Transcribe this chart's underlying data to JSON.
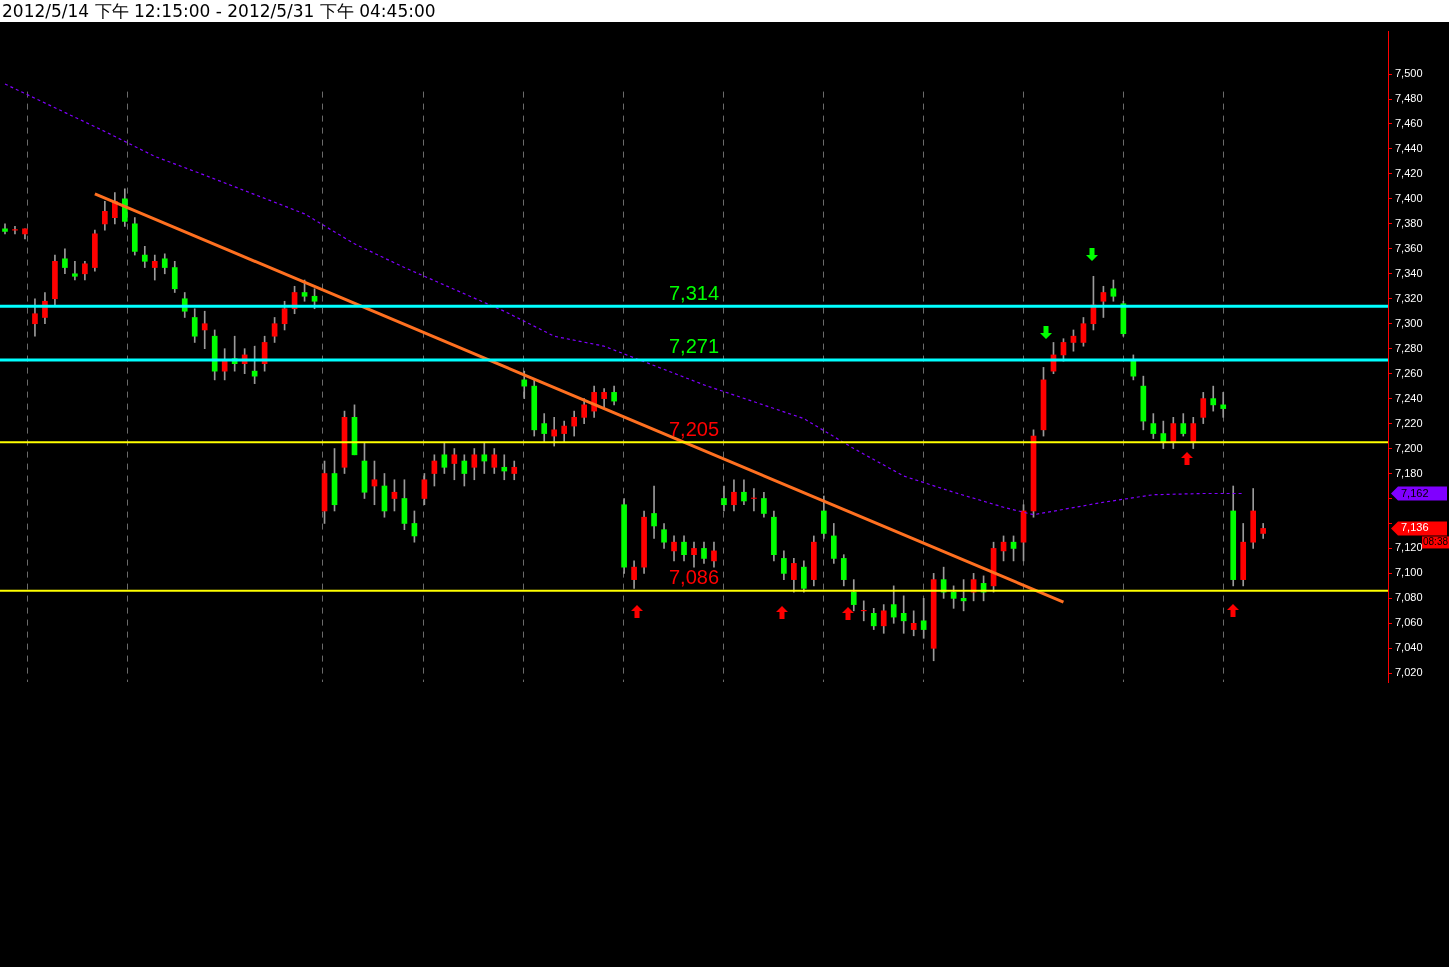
{
  "chart_data": {
    "type": "candlestick",
    "title": "2012/5/14 下午 12:15:00 - 2012/5/31 下午 04:45:00",
    "categories": [
      null,
      null,
      null,
      null,
      null,
      null,
      null,
      null,
      null,
      null,
      null,
      null,
      null,
      null,
      null,
      null,
      null,
      null,
      null,
      null,
      null,
      null,
      null,
      null,
      null,
      null,
      null,
      null,
      null,
      null,
      null,
      null,
      null,
      null,
      null,
      null,
      null,
      null,
      null,
      null,
      null,
      null,
      null,
      null,
      null,
      null,
      null,
      null,
      null,
      null,
      null,
      null,
      null,
      null,
      null,
      null,
      null,
      null,
      null,
      null,
      null,
      null,
      null,
      null,
      null,
      null,
      null,
      null,
      null,
      null,
      null,
      null,
      null,
      null,
      null,
      null,
      null,
      null,
      null,
      null,
      null,
      null,
      null,
      null,
      null,
      null,
      null,
      null,
      null,
      null,
      null,
      null,
      null,
      null,
      null,
      null,
      null,
      null,
      null,
      null,
      null,
      null,
      null,
      null,
      null,
      null,
      null,
      null,
      null,
      null,
      null,
      null,
      null,
      null,
      null,
      null,
      null,
      null,
      null,
      null,
      null,
      null,
      null,
      null,
      null,
      null,
      null,
      null,
      null,
      null,
      null,
      null,
      null,
      null,
      null,
      null,
      null,
      null,
      null
    ],
    "ohlc": [
      [
        7376,
        7380,
        7372,
        7374
      ],
      [
        7375,
        7378,
        7372,
        7375
      ],
      [
        7372,
        7376,
        7368,
        7376
      ],
      [
        7300,
        7320,
        7290,
        7308
      ],
      [
        7305,
        7325,
        7300,
        7318
      ],
      [
        7320,
        7355,
        7315,
        7350
      ],
      [
        7352,
        7360,
        7340,
        7345
      ],
      [
        7340,
        7350,
        7335,
        7338
      ],
      [
        7340,
        7350,
        7335,
        7348
      ],
      [
        7345,
        7375,
        7342,
        7372
      ],
      [
        7380,
        7398,
        7375,
        7390
      ],
      [
        7385,
        7405,
        7380,
        7398
      ],
      [
        7400,
        7408,
        7378,
        7382
      ],
      [
        7380,
        7385,
        7355,
        7358
      ],
      [
        7355,
        7362,
        7345,
        7350
      ],
      [
        7345,
        7355,
        7335,
        7350
      ],
      [
        7352,
        7356,
        7340,
        7345
      ],
      [
        7345,
        7350,
        7325,
        7328
      ],
      [
        7320,
        7325,
        7305,
        7310
      ],
      [
        7305,
        7312,
        7285,
        7290
      ],
      [
        7295,
        7310,
        7280,
        7300
      ],
      [
        7290,
        7295,
        7255,
        7262
      ],
      [
        7262,
        7280,
        7255,
        7270
      ],
      [
        7272,
        7290,
        7262,
        7268
      ],
      [
        7268,
        7280,
        7260,
        7275
      ],
      [
        7262,
        7282,
        7252,
        7258
      ],
      [
        7268,
        7290,
        7262,
        7285
      ],
      [
        7290,
        7305,
        7285,
        7300
      ],
      [
        7300,
        7318,
        7295,
        7312
      ],
      [
        7312,
        7330,
        7308,
        7325
      ],
      [
        7325,
        7335,
        7318,
        7322
      ],
      [
        7322,
        7328,
        7312,
        7318
      ],
      [
        7150,
        7190,
        7140,
        7180
      ],
      [
        7180,
        7200,
        7150,
        7155
      ],
      [
        7185,
        7230,
        7180,
        7225
      ],
      [
        7225,
        7235,
        7195,
        7195
      ],
      [
        7190,
        7205,
        7160,
        7165
      ],
      [
        7170,
        7190,
        7155,
        7175
      ],
      [
        7170,
        7180,
        7145,
        7150
      ],
      [
        7160,
        7175,
        7150,
        7165
      ],
      [
        7160,
        7175,
        7135,
        7140
      ],
      [
        7140,
        7150,
        7125,
        7130
      ],
      [
        7160,
        7180,
        7155,
        7175
      ],
      [
        7180,
        7195,
        7170,
        7190
      ],
      [
        7195,
        7205,
        7180,
        7185
      ],
      [
        7188,
        7200,
        7175,
        7195
      ],
      [
        7190,
        7195,
        7170,
        7180
      ],
      [
        7185,
        7200,
        7175,
        7195
      ],
      [
        7195,
        7205,
        7180,
        7190
      ],
      [
        7185,
        7200,
        7180,
        7195
      ],
      [
        7185,
        7195,
        7175,
        7182
      ],
      [
        7180,
        7190,
        7175,
        7185
      ],
      [
        7255,
        7262,
        7240,
        7250
      ],
      [
        7250,
        7255,
        7210,
        7215
      ],
      [
        7220,
        7228,
        7205,
        7212
      ],
      [
        7210,
        7225,
        7202,
        7215
      ],
      [
        7212,
        7222,
        7205,
        7218
      ],
      [
        7218,
        7230,
        7210,
        7225
      ],
      [
        7225,
        7240,
        7220,
        7235
      ],
      [
        7230,
        7250,
        7225,
        7245
      ],
      [
        7240,
        7248,
        7232,
        7245
      ],
      [
        7245,
        7250,
        7235,
        7238
      ],
      [
        7155,
        7160,
        7100,
        7105
      ],
      [
        7095,
        7110,
        7088,
        7105
      ],
      [
        7105,
        7150,
        7100,
        7145
      ],
      [
        7148,
        7170,
        7128,
        7138
      ],
      [
        7135,
        7140,
        7120,
        7125
      ],
      [
        7118,
        7130,
        7110,
        7125
      ],
      [
        7125,
        7130,
        7110,
        7115
      ],
      [
        7115,
        7125,
        7105,
        7120
      ],
      [
        7120,
        7125,
        7108,
        7112
      ],
      [
        7110,
        7125,
        7105,
        7118
      ],
      [
        7160,
        7170,
        7150,
        7155
      ],
      [
        7155,
        7175,
        7150,
        7165
      ],
      [
        7165,
        7175,
        7155,
        7158
      ],
      [
        7160,
        7168,
        7150,
        7160
      ],
      [
        7160,
        7165,
        7145,
        7148
      ],
      [
        7145,
        7150,
        7110,
        7115
      ],
      [
        7112,
        7118,
        7095,
        7100
      ],
      [
        7095,
        7112,
        7085,
        7108
      ],
      [
        7105,
        7110,
        7085,
        7088
      ],
      [
        7095,
        7130,
        7090,
        7125
      ],
      [
        7150,
        7162,
        7128,
        7132
      ],
      [
        7130,
        7140,
        7108,
        7112
      ],
      [
        7112,
        7115,
        7090,
        7095
      ],
      [
        7085,
        7095,
        7070,
        7075
      ],
      [
        7070,
        7078,
        7062,
        7070
      ],
      [
        7068,
        7072,
        7055,
        7058
      ],
      [
        7058,
        7075,
        7052,
        7070
      ],
      [
        7075,
        7090,
        7060,
        7065
      ],
      [
        7068,
        7082,
        7052,
        7062
      ],
      [
        7055,
        7070,
        7050,
        7060
      ],
      [
        7062,
        7080,
        7048,
        7055
      ],
      [
        7040,
        7100,
        7030,
        7095
      ],
      [
        7095,
        7105,
        7080,
        7085
      ],
      [
        7085,
        7090,
        7072,
        7080
      ],
      [
        7080,
        7095,
        7070,
        7078
      ],
      [
        7085,
        7100,
        7078,
        7095
      ],
      [
        7092,
        7098,
        7078,
        7085
      ],
      [
        7090,
        7125,
        7085,
        7120
      ],
      [
        7118,
        7130,
        7110,
        7125
      ],
      [
        7125,
        7130,
        7110,
        7120
      ],
      [
        7125,
        7155,
        7110,
        7150
      ],
      [
        7150,
        7215,
        7145,
        7210
      ],
      [
        7215,
        7265,
        7210,
        7255
      ],
      [
        7262,
        7285,
        7260,
        7275
      ],
      [
        7275,
        7288,
        7270,
        7285
      ],
      [
        7285,
        7295,
        7278,
        7290
      ],
      [
        7285,
        7305,
        7282,
        7300
      ],
      [
        7300,
        7338,
        7295,
        7315
      ],
      [
        7318,
        7330,
        7305,
        7325
      ],
      [
        7328,
        7335,
        7318,
        7322
      ],
      [
        7316,
        7318,
        7290,
        7292
      ],
      [
        7270,
        7275,
        7255,
        7258
      ],
      [
        7250,
        7258,
        7215,
        7222
      ],
      [
        7220,
        7228,
        7208,
        7212
      ],
      [
        7212,
        7222,
        7200,
        7205
      ],
      [
        7205,
        7225,
        7200,
        7220
      ],
      [
        7220,
        7228,
        7210,
        7212
      ],
      [
        7205,
        7225,
        7200,
        7220
      ],
      [
        7225,
        7245,
        7220,
        7240
      ],
      [
        7240,
        7250,
        7230,
        7235
      ],
      [
        7235,
        7245,
        7225,
        7232
      ],
      [
        7150,
        7170,
        7090,
        7095
      ],
      [
        7095,
        7140,
        7090,
        7125
      ],
      [
        7125,
        7168,
        7120,
        7150
      ],
      [
        7132,
        7140,
        7128,
        7136
      ],
      null,
      null,
      null,
      null,
      null,
      null,
      null,
      null,
      null,
      null,
      null,
      null
    ],
    "series": [
      {
        "type": "line",
        "color": "#ff7020",
        "line_style": "solid",
        "values": [
          null,
          null,
          null,
          null,
          null,
          null,
          null,
          null,
          null,
          7404,
          null,
          null,
          null,
          null,
          null,
          null,
          null,
          null,
          null,
          null,
          null,
          null,
          null,
          null,
          null,
          null,
          null,
          null,
          null,
          null,
          null,
          null,
          null,
          null,
          null,
          null,
          null,
          null,
          null,
          null,
          null,
          null,
          null,
          null,
          null,
          null,
          null,
          null,
          null,
          null,
          null,
          null,
          null,
          null,
          null,
          null,
          null,
          null,
          null,
          null,
          null,
          null,
          null,
          null,
          null,
          null,
          null,
          null,
          null,
          null,
          null,
          null,
          null,
          null,
          null,
          null,
          null,
          null,
          null,
          null,
          null,
          null,
          null,
          null,
          null,
          null,
          null,
          null,
          null,
          null,
          null,
          null,
          null,
          null,
          null,
          null,
          null,
          null,
          null,
          null,
          null,
          null,
          null,
          null,
          null,
          null,
          7077,
          null,
          null,
          null,
          null,
          null,
          null,
          null,
          null,
          null,
          null,
          null,
          null,
          null,
          null,
          null,
          null,
          null,
          null,
          null,
          null,
          null,
          null,
          null,
          null,
          null,
          null,
          null,
          null,
          null,
          null,
          null,
          null
        ]
      },
      {
        "type": "line",
        "color": "#8000ff",
        "line_style": "dashed",
        "values": [
          7492,
          null,
          null,
          null,
          null,
          null,
          null,
          null,
          null,
          null,
          7454,
          null,
          null,
          null,
          null,
          7434,
          null,
          null,
          null,
          null,
          7419,
          null,
          null,
          null,
          null,
          null,
          null,
          null,
          null,
          null,
          7388,
          null,
          null,
          null,
          null,
          7364,
          null,
          null,
          null,
          null,
          7345,
          null,
          null,
          null,
          null,
          null,
          null,
          null,
          null,
          null,
          7310,
          null,
          null,
          null,
          null,
          7290,
          null,
          null,
          null,
          null,
          7282,
          null,
          null,
          null,
          null,
          null,
          null,
          null,
          null,
          null,
          7251,
          null,
          null,
          null,
          null,
          null,
          null,
          null,
          null,
          null,
          7224,
          null,
          null,
          null,
          null,
          7200,
          null,
          null,
          null,
          null,
          7178,
          null,
          null,
          null,
          null,
          7165,
          null,
          null,
          null,
          null,
          7153,
          null,
          null,
          7147,
          null,
          null,
          null,
          null,
          null,
          null,
          7157,
          null,
          null,
          null,
          null,
          7163,
          null,
          null,
          null,
          null,
          7164,
          null,
          null,
          null,
          7164,
          null,
          null,
          null,
          null,
          null,
          null,
          null,
          null,
          null,
          null,
          null,
          null,
          null,
          null
        ]
      }
    ],
    "ylim": [
      7013,
      7534
    ],
    "yticks": [
      {
        "value": 7020,
        "label": "7,020"
      },
      {
        "value": 7040,
        "label": "7,040"
      },
      {
        "value": 7060,
        "label": "7,060"
      },
      {
        "value": 7080,
        "label": "7,080"
      },
      {
        "value": 7100,
        "label": "7,100"
      },
      {
        "value": 7120,
        "label": "7,120"
      },
      {
        "value": 7140,
        "label": null
      },
      {
        "value": 7160,
        "label": null
      },
      {
        "value": 7180,
        "label": "7,180"
      },
      {
        "value": 7200,
        "label": "7,200"
      },
      {
        "value": 7220,
        "label": "7,220"
      },
      {
        "value": 7240,
        "label": "7,240"
      },
      {
        "value": 7260,
        "label": "7,260"
      },
      {
        "value": 7280,
        "label": "7,280"
      },
      {
        "value": 7300,
        "label": "7,300"
      },
      {
        "value": 7320,
        "label": "7,320"
      },
      {
        "value": 7340,
        "label": "7,340"
      },
      {
        "value": 7360,
        "label": "7,360"
      },
      {
        "value": 7380,
        "label": "7,380"
      },
      {
        "value": 7400,
        "label": "7,400"
      },
      {
        "value": 7420,
        "label": "7,420"
      },
      {
        "value": 7440,
        "label": "7,440"
      },
      {
        "value": 7460,
        "label": "7,460"
      },
      {
        "value": 7480,
        "label": "7,480"
      },
      {
        "value": 7500,
        "label": "7,500"
      }
    ],
    "ref_lines": [
      {
        "axis": "y",
        "value": 7314,
        "label": "7,314",
        "color": "#00ffff"
      },
      {
        "axis": "y",
        "value": 7271,
        "label": "7,271",
        "color": "#00ffff"
      },
      {
        "axis": "y",
        "value": 7205,
        "label": "7,205",
        "color": "#ffff00"
      },
      {
        "axis": "y",
        "value": 7086,
        "label": "7,086",
        "color": "#ffff00"
      }
    ],
    "annotations": [
      "7,162",
      "7,136",
      "08:38"
    ],
    "grid": false,
    "legend": false,
    "tick_labels": "y"
  }
}
